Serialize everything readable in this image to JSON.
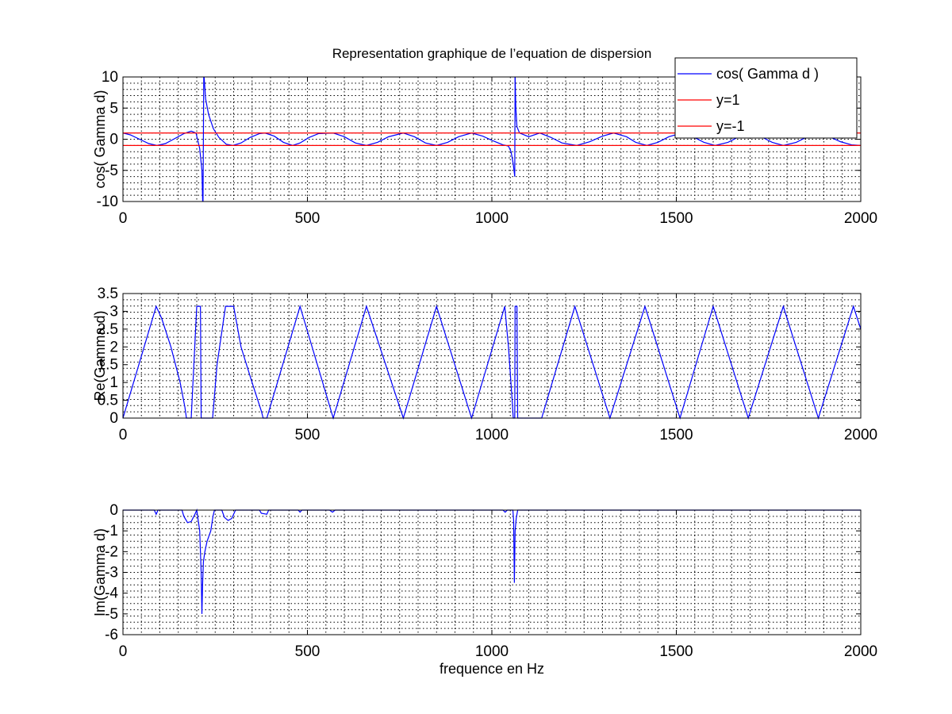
{
  "figure": {
    "title": "Representation graphique de l’equation de dispersion",
    "xlabel": "frequence en Hz"
  },
  "colors": {
    "blue": "#0000ff",
    "red": "#ff0000",
    "grid": "#000000",
    "axes": "#000000"
  },
  "chart_data": [
    {
      "type": "line",
      "ylabel": "cos( Gamma d)",
      "xlim": [
        0,
        2000
      ],
      "ylim": [
        -10,
        10
      ],
      "xticks": [
        0,
        500,
        1000,
        1500,
        2000
      ],
      "yticks": [
        -10,
        -5,
        0,
        5,
        10
      ],
      "grid": true,
      "legend": {
        "position": "top-right",
        "entries": [
          {
            "label": "cos( Gamma d )",
            "color": "#0000ff"
          },
          {
            "label": "y=1",
            "color": "#ff0000"
          },
          {
            "label": "y=-1",
            "color": "#ff0000"
          }
        ]
      },
      "series": [
        {
          "name": "cos( Gamma d )",
          "color": "#0000ff",
          "segments": [
            [
              [
                0,
                1.0
              ],
              [
                20,
                0.7
              ],
              [
                45,
                0.0
              ],
              [
                70,
                -0.7
              ],
              [
                92,
                -1.0
              ],
              [
                115,
                -0.7
              ],
              [
                140,
                0.1
              ],
              [
                165,
                0.9
              ],
              [
                185,
                1.3
              ],
              [
                198,
                1.0
              ],
              [
                208,
                -1.5
              ],
              [
                214,
                -5
              ],
              [
                216,
                -10
              ]
            ],
            [
              [
                220,
                10
              ],
              [
                224,
                6.5
              ],
              [
                232,
                4.0
              ],
              [
                245,
                1.7
              ],
              [
                260,
                0.3
              ],
              [
                280,
                -0.8
              ],
              [
                298,
                -1.0
              ],
              [
                320,
                -0.6
              ],
              [
                345,
                0.3
              ],
              [
                370,
                0.9
              ],
              [
                385,
                1.0
              ],
              [
                410,
                0.5
              ],
              [
                435,
                -0.5
              ],
              [
                460,
                -1.0
              ],
              [
                480,
                -0.6
              ],
              [
                505,
                0.3
              ],
              [
                530,
                0.9
              ],
              [
                570,
                1.0
              ],
              [
                600,
                0.4
              ],
              [
                630,
                -0.6
              ],
              [
                660,
                -1.0
              ],
              [
                690,
                -0.5
              ],
              [
                720,
                0.4
              ],
              [
                760,
                1.0
              ],
              [
                790,
                0.4
              ],
              [
                820,
                -0.6
              ],
              [
                850,
                -1.0
              ],
              [
                880,
                -0.5
              ],
              [
                910,
                0.4
              ],
              [
                945,
                1.0
              ],
              [
                975,
                0.5
              ],
              [
                1005,
                -0.3
              ],
              [
                1030,
                -0.9
              ],
              [
                1045,
                -1.1
              ],
              [
                1052,
                -2.0
              ],
              [
                1058,
                -4.0
              ],
              [
                1062,
                -6.0
              ]
            ],
            [
              [
                1063,
                10
              ],
              [
                1065,
                5
              ],
              [
                1068,
                2
              ],
              [
                1075,
                1.0
              ],
              [
                1100,
                0.4
              ],
              [
                1130,
                1.0
              ],
              [
                1160,
                0.3
              ],
              [
                1190,
                -0.6
              ],
              [
                1230,
                -1.0
              ],
              [
                1265,
                -0.4
              ],
              [
                1300,
                0.5
              ],
              [
                1330,
                1.0
              ],
              [
                1365,
                0.4
              ],
              [
                1390,
                -0.5
              ],
              [
                1420,
                -1.0
              ],
              [
                1450,
                -0.5
              ],
              [
                1480,
                0.4
              ],
              [
                1515,
                1.0
              ],
              [
                1545,
                0.4
              ],
              [
                1575,
                -0.5
              ],
              [
                1605,
                -1.0
              ],
              [
                1640,
                -0.5
              ],
              [
                1670,
                0.4
              ],
              [
                1700,
                1.0
              ],
              [
                1730,
                0.4
              ],
              [
                1760,
                -0.5
              ],
              [
                1790,
                -1.0
              ],
              [
                1825,
                -0.5
              ],
              [
                1855,
                0.4
              ],
              [
                1885,
                1.0
              ],
              [
                1915,
                0.4
              ],
              [
                1945,
                -0.4
              ],
              [
                1975,
                -0.9
              ],
              [
                2000,
                -1.0
              ]
            ]
          ]
        },
        {
          "name": "y=1",
          "color": "#ff0000",
          "segments": [
            [
              [
                0,
                1
              ],
              [
                2000,
                1
              ]
            ]
          ]
        },
        {
          "name": "y=-1",
          "color": "#ff0000",
          "segments": [
            [
              [
                0,
                -1
              ],
              [
                2000,
                -1
              ]
            ]
          ]
        },
        {
          "name": "",
          "color": "#0000ff",
          "segments": [
            [
              [
                217,
                -10
              ],
              [
                219,
                10
              ]
            ],
            [
              [
                1062,
                -6
              ],
              [
                1063,
                10
              ]
            ]
          ]
        }
      ]
    },
    {
      "type": "line",
      "ylabel": "Re(Gamma d)",
      "xlim": [
        0,
        2000
      ],
      "ylim": [
        0,
        3.5
      ],
      "xticks": [
        0,
        500,
        1000,
        1500,
        2000
      ],
      "yticks": [
        0,
        0.5,
        1,
        1.5,
        2,
        2.5,
        3,
        3.5
      ],
      "grid": true,
      "series": [
        {
          "name": "Re(Gamma d)",
          "color": "#0000ff",
          "segments": [
            [
              [
                0,
                0
              ],
              [
                90,
                3.14
              ],
              [
                105,
                2.8
              ],
              [
                130,
                2.0
              ],
              [
                155,
                1.0
              ],
              [
                168,
                0.3
              ],
              [
                172,
                0
              ],
              [
                185,
                0
              ],
              [
                200,
                3.14
              ],
              [
                210,
                3.14
              ],
              [
                212,
                0
              ],
              [
                218,
                0
              ],
              [
                220,
                0
              ],
              [
                243,
                0
              ],
              [
                255,
                1.5
              ],
              [
                278,
                3.14
              ],
              [
                300,
                3.14
              ],
              [
                320,
                2.0
              ],
              [
                350,
                1.0
              ],
              [
                375,
                0.2
              ],
              [
                380,
                0
              ],
              [
                390,
                0
              ],
              [
                480,
                3.14
              ],
              [
                570,
                0
              ],
              [
                660,
                3.14
              ],
              [
                760,
                0
              ],
              [
                850,
                3.14
              ],
              [
                945,
                0
              ],
              [
                1035,
                3.14
              ],
              [
                1045,
                2.0
              ],
              [
                1055,
                0.5
              ],
              [
                1058,
                0
              ],
              [
                1060,
                0
              ],
              [
                1062,
                0
              ],
              [
                1063,
                3.14
              ],
              [
                1068,
                3.14
              ],
              [
                1070,
                0
              ],
              [
                1072,
                0
              ],
              [
                1135,
                0
              ],
              [
                1225,
                3.14
              ],
              [
                1320,
                0
              ],
              [
                1415,
                3.14
              ],
              [
                1510,
                0
              ],
              [
                1600,
                3.14
              ],
              [
                1695,
                0
              ],
              [
                1790,
                3.14
              ],
              [
                1885,
                0
              ],
              [
                1980,
                3.14
              ],
              [
                2000,
                2.5
              ]
            ]
          ]
        }
      ]
    },
    {
      "type": "line",
      "ylabel": "Im(Gamma d)",
      "xlim": [
        0,
        2000
      ],
      "ylim": [
        -6,
        0
      ],
      "xticks": [
        0,
        500,
        1000,
        1500,
        2000
      ],
      "yticks": [
        -6,
        -5,
        -4,
        -3,
        -2,
        -1,
        0
      ],
      "grid": true,
      "series": [
        {
          "name": "Im(Gamma d)",
          "color": "#0000ff",
          "segments": [
            [
              [
                0,
                0
              ],
              [
                85,
                0
              ],
              [
                90,
                -0.2
              ],
              [
                95,
                0
              ],
              [
                160,
                0
              ],
              [
                165,
                -0.3
              ],
              [
                175,
                -0.6
              ],
              [
                185,
                -0.55
              ],
              [
                195,
                -0.2
              ],
              [
                200,
                0
              ],
              [
                208,
                -1.0
              ],
              [
                212,
                -3.0
              ],
              [
                214,
                -5.0
              ],
              [
                216,
                -3.5
              ],
              [
                218,
                -2.5
              ],
              [
                222,
                -2.0
              ],
              [
                228,
                -1.5
              ],
              [
                238,
                -1.0
              ],
              [
                244,
                -0.3
              ],
              [
                248,
                0
              ],
              [
                268,
                0
              ],
              [
                275,
                -0.35
              ],
              [
                285,
                -0.5
              ],
              [
                295,
                -0.4
              ],
              [
                305,
                0
              ],
              [
                370,
                0
              ],
              [
                375,
                -0.15
              ],
              [
                390,
                -0.2
              ],
              [
                395,
                0
              ],
              [
                475,
                0
              ],
              [
                480,
                -0.1
              ],
              [
                485,
                0
              ],
              [
                560,
                0
              ],
              [
                568,
                -0.1
              ],
              [
                575,
                0
              ],
              [
                1030,
                0
              ],
              [
                1036,
                -0.1
              ],
              [
                1042,
                0
              ],
              [
                1057,
                0
              ],
              [
                1059,
                -0.5
              ],
              [
                1061,
                -3.5
              ],
              [
                1063,
                -1.0
              ],
              [
                1066,
                -0.4
              ],
              [
                1070,
                0
              ],
              [
                2000,
                0
              ]
            ]
          ]
        }
      ]
    }
  ]
}
